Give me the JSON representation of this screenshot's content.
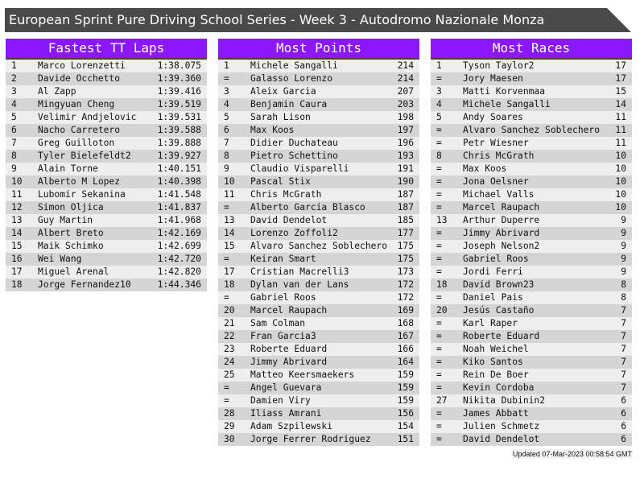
{
  "title": "European Sprint Pure Driving School Series - Week 3 - Autodromo Nazionale Monza",
  "colors": {
    "header_bg": "#8b17fb",
    "title_bg": "#4a4a4a",
    "row_light": "#eeeeee",
    "row_dark": "#d5d5d5"
  },
  "panels": [
    {
      "title": "Fastest TT Laps",
      "rows": [
        [
          "1",
          "Marco Lorenzetti",
          "1:38.075"
        ],
        [
          "2",
          "Davide Occhetto",
          "1:39.360"
        ],
        [
          "3",
          "Al Zapp",
          "1:39.416"
        ],
        [
          "4",
          "Mingyuan Cheng",
          "1:39.519"
        ],
        [
          "5",
          "Velimir Andjelovic",
          "1:39.531"
        ],
        [
          "6",
          "Nacho Carretero",
          "1:39.588"
        ],
        [
          "7",
          "Greg Guilloton",
          "1:39.888"
        ],
        [
          "8",
          "Tyler Bielefeldt2",
          "1:39.927"
        ],
        [
          "9",
          "Alain Torne",
          "1:40.151"
        ],
        [
          "10",
          "Alberto M Lopez",
          "1:40.398"
        ],
        [
          "11",
          "Lubomír Sekanina",
          "1:41.548"
        ],
        [
          "12",
          "Simon Oljica",
          "1:41.837"
        ],
        [
          "13",
          "Guy Martin",
          "1:41.968"
        ],
        [
          "14",
          "Albert Breto",
          "1:42.169"
        ],
        [
          "15",
          "Maik Schimko",
          "1:42.699"
        ],
        [
          "16",
          "Wei Wang",
          "1:42.720"
        ],
        [
          "17",
          "Miguel Arenal",
          "1:42.820"
        ],
        [
          "18",
          "Jorge Fernandez10",
          "1:44.346"
        ]
      ]
    },
    {
      "title": "Most Points",
      "rows": [
        [
          "1",
          "Michele Sangalli",
          "214"
        ],
        [
          "=",
          "Galasso Lorenzo",
          "214"
        ],
        [
          "3",
          "Aleix Garcia",
          "207"
        ],
        [
          "4",
          "Benjamin Caura",
          "203"
        ],
        [
          "5",
          "Sarah Lison",
          "198"
        ],
        [
          "6",
          "Max Koos",
          "197"
        ],
        [
          "7",
          "Didier Duchateau",
          "196"
        ],
        [
          "8",
          "Pietro Schettino",
          "193"
        ],
        [
          "9",
          "Claudio Visparelli",
          "191"
        ],
        [
          "10",
          "Pascal Stix",
          "190"
        ],
        [
          "11",
          "Chris McGrath",
          "187"
        ],
        [
          "=",
          "Alberto García Blasco",
          "187"
        ],
        [
          "13",
          "David Dendelot",
          "185"
        ],
        [
          "14",
          "Lorenzo Zoffoli2",
          "177"
        ],
        [
          "15",
          "Alvaro Sanchez Soblechero",
          "175"
        ],
        [
          "=",
          "Keiran Smart",
          "175"
        ],
        [
          "17",
          "Cristian Macrelli3",
          "173"
        ],
        [
          "18",
          "Dylan van der Lans",
          "172"
        ],
        [
          "=",
          "Gabriel Roos",
          "172"
        ],
        [
          "20",
          "Marcel Raupach",
          "169"
        ],
        [
          "21",
          "Sam Colman",
          "168"
        ],
        [
          "22",
          "Fran Garcia3",
          "167"
        ],
        [
          "23",
          "Roberte Eduard",
          "166"
        ],
        [
          "24",
          "Jimmy Abrivard",
          "164"
        ],
        [
          "25",
          "Matteo Keersmaekers",
          "159"
        ],
        [
          "=",
          "Angel Guevara",
          "159"
        ],
        [
          "=",
          "Damien Viry",
          "159"
        ],
        [
          "28",
          "Iliass Amrani",
          "156"
        ],
        [
          "29",
          "Adam Szpilewski",
          "154"
        ],
        [
          "30",
          "Jorge Ferrer Rodriguez",
          "151"
        ]
      ]
    },
    {
      "title": "Most Races",
      "rows": [
        [
          "1",
          "Tyson Taylor2",
          "17"
        ],
        [
          "=",
          "Jory Maesen",
          "17"
        ],
        [
          "3",
          "Matti Korvenmaa",
          "15"
        ],
        [
          "4",
          "Michele Sangalli",
          "14"
        ],
        [
          "5",
          "Andy Soares",
          "11"
        ],
        [
          "=",
          "Alvaro Sanchez Soblechero",
          "11"
        ],
        [
          "=",
          "Petr Wiesner",
          "11"
        ],
        [
          "8",
          "Chris McGrath",
          "10"
        ],
        [
          "=",
          "Max Koos",
          "10"
        ],
        [
          "=",
          "Jona Oelsner",
          "10"
        ],
        [
          "=",
          "Michael Valls",
          "10"
        ],
        [
          "=",
          "Marcel Raupach",
          "10"
        ],
        [
          "13",
          "Arthur Duperre",
          "9"
        ],
        [
          "=",
          "Jimmy Abrivard",
          "9"
        ],
        [
          "=",
          "Joseph Nelson2",
          "9"
        ],
        [
          "=",
          "Gabriel Roos",
          "9"
        ],
        [
          "=",
          "Jordi Ferri",
          "9"
        ],
        [
          "18",
          "David Brown23",
          "8"
        ],
        [
          "=",
          "Daniel Pais",
          "8"
        ],
        [
          "20",
          "Jesús Castaño",
          "7"
        ],
        [
          "=",
          "Karl Raper",
          "7"
        ],
        [
          "=",
          "Roberte Eduard",
          "7"
        ],
        [
          "=",
          "Noah Weichel",
          "7"
        ],
        [
          "=",
          "Kiko Santos",
          "7"
        ],
        [
          "=",
          "Rein De Boer",
          "7"
        ],
        [
          "=",
          "Kevin Cordoba",
          "7"
        ],
        [
          "27",
          "Nikita Dubinin2",
          "6"
        ],
        [
          "=",
          "James Abbatt",
          "6"
        ],
        [
          "=",
          "Julien Schmetz",
          "6"
        ],
        [
          "=",
          "David Dendelot",
          "6"
        ]
      ]
    }
  ],
  "updated": "Updated 07-Mar-2023 00:58:54 GMT"
}
